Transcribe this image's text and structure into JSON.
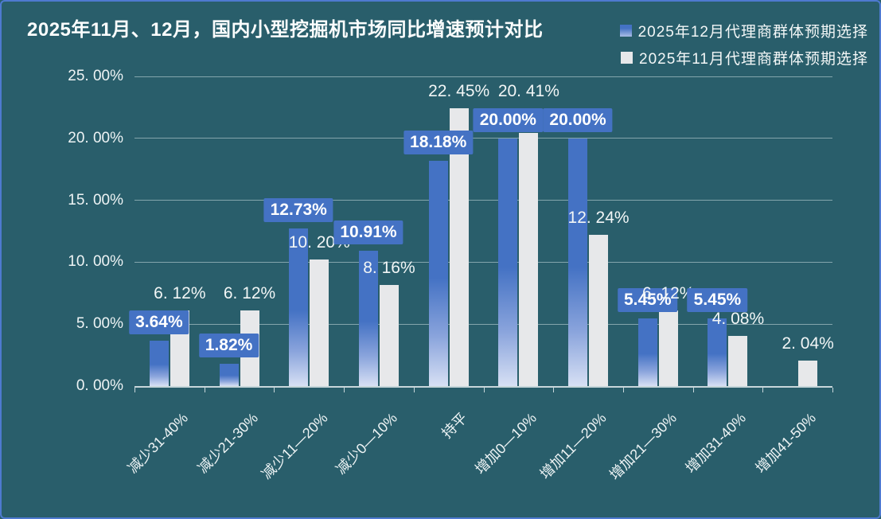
{
  "title": "2025年11月、12月，国内小型挖掘机市场同比增速预计对比",
  "legend": {
    "items": [
      {
        "label": "2025年12月代理商群体预期选择",
        "swatch_color": "#4472c4"
      },
      {
        "label": "2025年11月代理商群体预期选择",
        "swatch_color": "#e7e8ea"
      }
    ]
  },
  "chart_data": {
    "type": "bar",
    "title": "2025年11月、12月，国内小型挖掘机市场同比增速预计对比",
    "categories": [
      "减少31-40%",
      "减少21-30%",
      "减少11—20%",
      "减少0—10%",
      "持平",
      "增加0—10%",
      "增加11—20%",
      "增加21—30%",
      "增加31-40%",
      "增加41-50%"
    ],
    "series": [
      {
        "name": "2025年12月代理商群体预期选择",
        "color": "#4472c4",
        "values": [
          3.64,
          1.82,
          12.73,
          10.91,
          18.18,
          20.0,
          20.0,
          5.45,
          5.45,
          null
        ],
        "data_labels": [
          "3.64%",
          "1.82%",
          "12.73%",
          "10.91%",
          "18.18%",
          "20.00%",
          "20.00%",
          "5.45%",
          "5.45%",
          ""
        ]
      },
      {
        "name": "2025年11月代理商群体预期选择",
        "color": "#e7e8ea",
        "values": [
          6.12,
          6.12,
          10.2,
          8.16,
          22.45,
          20.41,
          12.24,
          6.12,
          4.08,
          2.04
        ],
        "data_labels": [
          "6. 12%",
          "6. 12%",
          "10. 20%",
          "8. 16%",
          "22. 45%",
          "20. 41%",
          "12. 24%",
          "6. 12%",
          "4. 08%",
          "2. 04%"
        ]
      }
    ],
    "xlabel": "",
    "ylabel": "",
    "ylim": [
      0,
      25
    ],
    "ytick_labels": [
      "0. 00%",
      "5. 00%",
      "10. 00%",
      "15. 00%",
      "20. 00%",
      "25. 00%"
    ],
    "grid": true,
    "legend_position": "top-right"
  },
  "colors": {
    "background": "#295e6b",
    "frame_border": "#4e7ad0",
    "bar_blue": "#4472c4",
    "bar_blue_fade": "#d7e0f4",
    "bar_white": "#e7e8ea",
    "gridline": "rgba(222,235,238,0.5)",
    "axis": "#c7d6da",
    "text": "#f3f7f7",
    "label_box_bg": "#4472c4",
    "label_box_text": "#ffffff"
  }
}
